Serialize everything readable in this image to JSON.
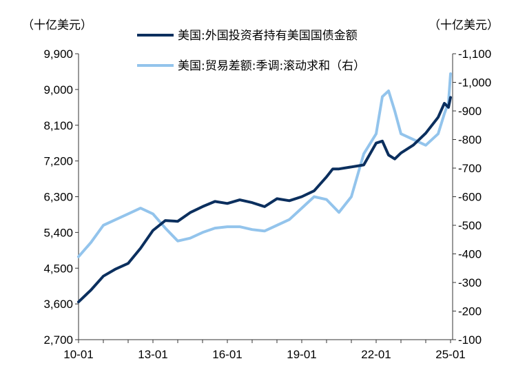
{
  "chart_data": {
    "type": "line",
    "left_unit": "（十亿美元）",
    "right_unit": "（十亿美元）",
    "x_tick_labels": [
      "10-01",
      "13-01",
      "16-01",
      "19-01",
      "22-01",
      "25-01"
    ],
    "left_axis": {
      "ylim": [
        2700,
        9900
      ],
      "ticks": [
        "2,700",
        "3,600",
        "4,500",
        "5,400",
        "6,300",
        "7,200",
        "8,100",
        "9,000",
        "9,900"
      ]
    },
    "right_axis": {
      "ylim": [
        -100,
        -1100
      ],
      "reversed": true,
      "ticks": [
        "-100",
        "-200",
        "-300",
        "-400",
        "-500",
        "-600",
        "-700",
        "-800",
        "-900",
        "-1,000",
        "-1,100"
      ]
    },
    "legend_position": "top",
    "series": [
      {
        "name": "美国:外国投资者持有美国国债金额",
        "axis": "left",
        "color": "#0b2f5e",
        "points": [
          [
            "2010-01",
            3650
          ],
          [
            "2010-07",
            3950
          ],
          [
            "2011-01",
            4300
          ],
          [
            "2011-07",
            4480
          ],
          [
            "2012-01",
            4620
          ],
          [
            "2012-07",
            5000
          ],
          [
            "2013-01",
            5450
          ],
          [
            "2013-07",
            5700
          ],
          [
            "2014-01",
            5680
          ],
          [
            "2014-07",
            5900
          ],
          [
            "2015-01",
            6050
          ],
          [
            "2015-07",
            6180
          ],
          [
            "2016-01",
            6130
          ],
          [
            "2016-07",
            6220
          ],
          [
            "2017-01",
            6150
          ],
          [
            "2017-07",
            6050
          ],
          [
            "2018-01",
            6250
          ],
          [
            "2018-07",
            6200
          ],
          [
            "2019-01",
            6300
          ],
          [
            "2019-07",
            6450
          ],
          [
            "2020-01",
            6800
          ],
          [
            "2020-04",
            7000
          ],
          [
            "2020-07",
            7000
          ],
          [
            "2021-01",
            7050
          ],
          [
            "2021-07",
            7100
          ],
          [
            "2022-01",
            7650
          ],
          [
            "2022-04",
            7700
          ],
          [
            "2022-07",
            7350
          ],
          [
            "2022-10",
            7250
          ],
          [
            "2023-01",
            7400
          ],
          [
            "2023-07",
            7600
          ],
          [
            "2024-01",
            7900
          ],
          [
            "2024-07",
            8300
          ],
          [
            "2024-10",
            8650
          ],
          [
            "2024-12",
            8550
          ],
          [
            "2025-01",
            8800
          ]
        ]
      },
      {
        "name": "美国:贸易差额:季调:滚动求和（右）",
        "axis": "right",
        "color": "#93c4ec",
        "points": [
          [
            "2010-01",
            -390
          ],
          [
            "2010-07",
            -440
          ],
          [
            "2011-01",
            -500
          ],
          [
            "2011-07",
            -520
          ],
          [
            "2012-01",
            -540
          ],
          [
            "2012-07",
            -560
          ],
          [
            "2013-01",
            -540
          ],
          [
            "2013-07",
            -490
          ],
          [
            "2014-01",
            -445
          ],
          [
            "2014-07",
            -455
          ],
          [
            "2015-01",
            -475
          ],
          [
            "2015-07",
            -490
          ],
          [
            "2016-01",
            -495
          ],
          [
            "2016-07",
            -495
          ],
          [
            "2017-01",
            -485
          ],
          [
            "2017-07",
            -480
          ],
          [
            "2018-01",
            -500
          ],
          [
            "2018-07",
            -520
          ],
          [
            "2019-01",
            -560
          ],
          [
            "2019-07",
            -600
          ],
          [
            "2020-01",
            -590
          ],
          [
            "2020-07",
            -545
          ],
          [
            "2021-01",
            -600
          ],
          [
            "2021-07",
            -750
          ],
          [
            "2022-01",
            -820
          ],
          [
            "2022-04",
            -950
          ],
          [
            "2022-07",
            -970
          ],
          [
            "2022-10",
            -900
          ],
          [
            "2023-01",
            -820
          ],
          [
            "2023-07",
            -800
          ],
          [
            "2024-01",
            -780
          ],
          [
            "2024-07",
            -820
          ],
          [
            "2024-10",
            -890
          ],
          [
            "2024-12",
            -930
          ],
          [
            "2025-01",
            -1030
          ]
        ]
      }
    ]
  }
}
